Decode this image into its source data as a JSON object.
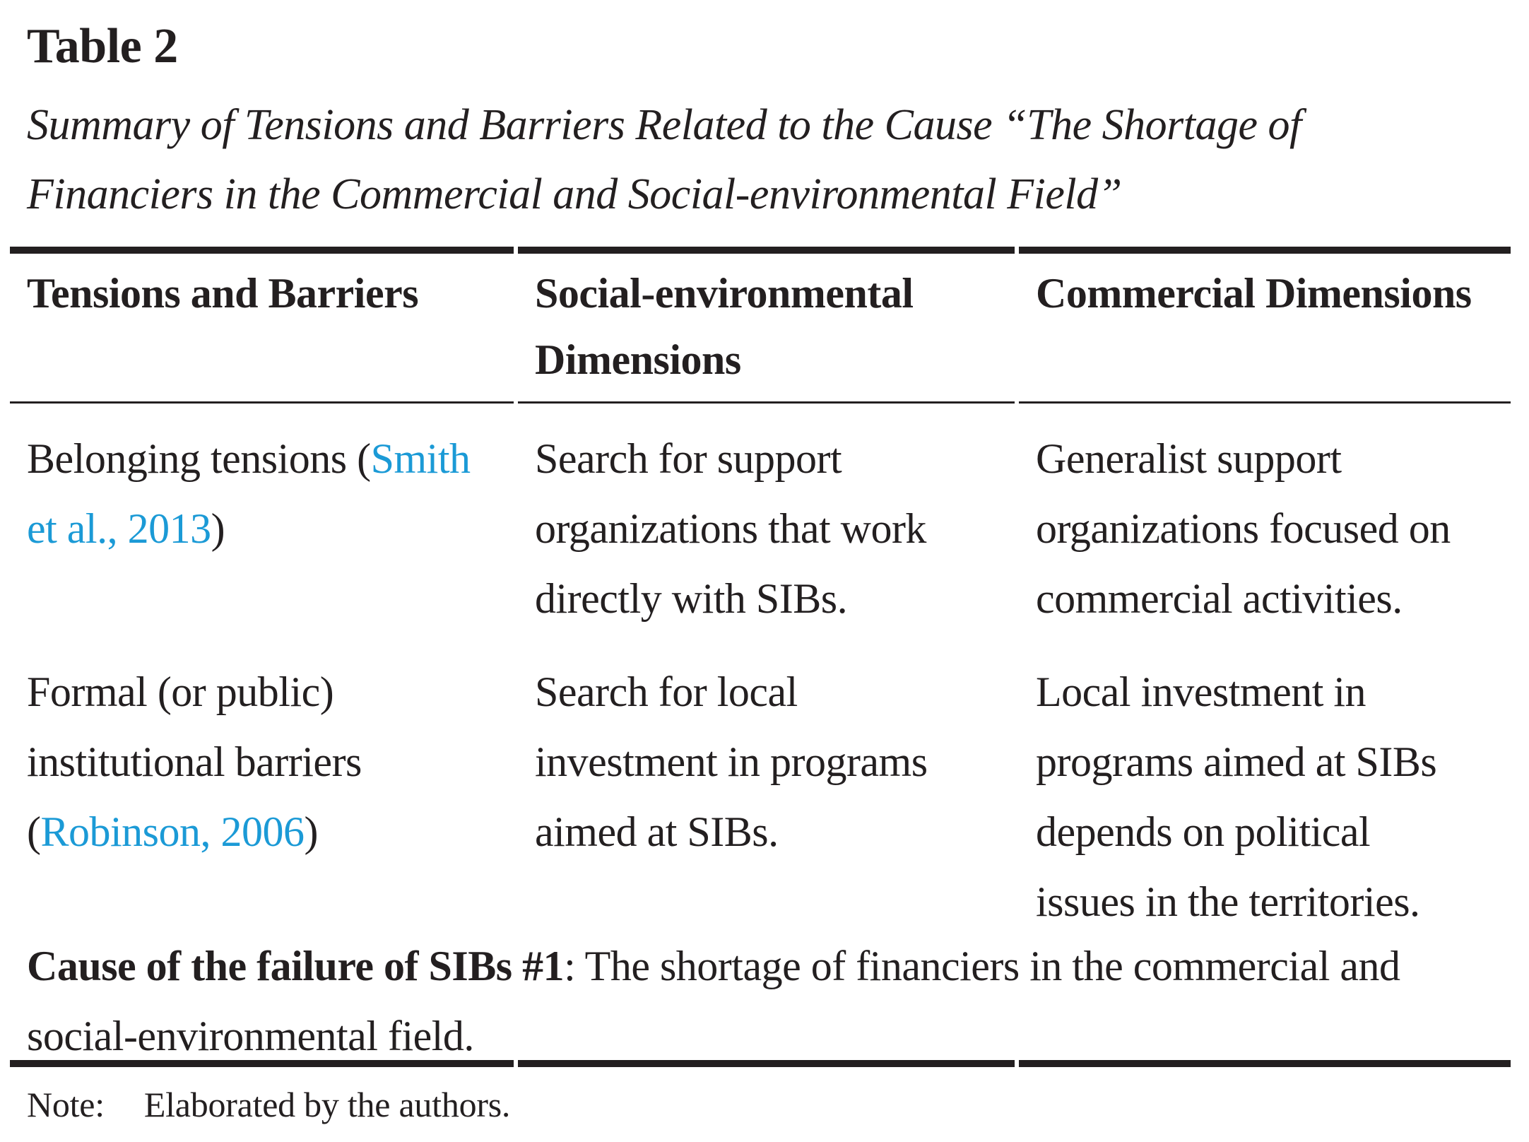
{
  "page": {
    "table_label": "Table 2",
    "caption": "Summary of Tensions and Barriers Related to the Cause “The Shortage of\nFinanciers in the Commercial and Social-environmental Field”"
  },
  "table": {
    "headers": [
      "Tensions and Barriers",
      "Social-environmental\nDimensions",
      "Commercial Dimensions"
    ],
    "rows": [
      {
        "tension": {
          "prefix": "Belonging tensions (",
          "link": "Smith\net al., 2013",
          "suffix": ")"
        },
        "social": "Search for support\norganizations that work\ndirectly with SIBs.",
        "commercial": "Generalist support\norganizations focused on\ncommercial activities."
      },
      {
        "tension": {
          "prefix": "Formal (or public)\ninstitutional barriers\n(",
          "link": "Robinson, 2006",
          "suffix": ")"
        },
        "social": "Search for local\ninvestment in programs\naimed at SIBs.",
        "commercial": "Local investment in\nprograms aimed at SIBs\ndepends on political\nissues in the territories."
      }
    ]
  },
  "footer": {
    "cause_lead": "Cause of the failure of SIBs #1",
    "cause_rest": ": The shortage of financiers in the commercial and\nsocial-environmental field.",
    "note_label": "Note:",
    "note_text": "Elaborated by the authors."
  },
  "colors": {
    "text": "#231F20",
    "citation_link": "#1B9AD6"
  }
}
